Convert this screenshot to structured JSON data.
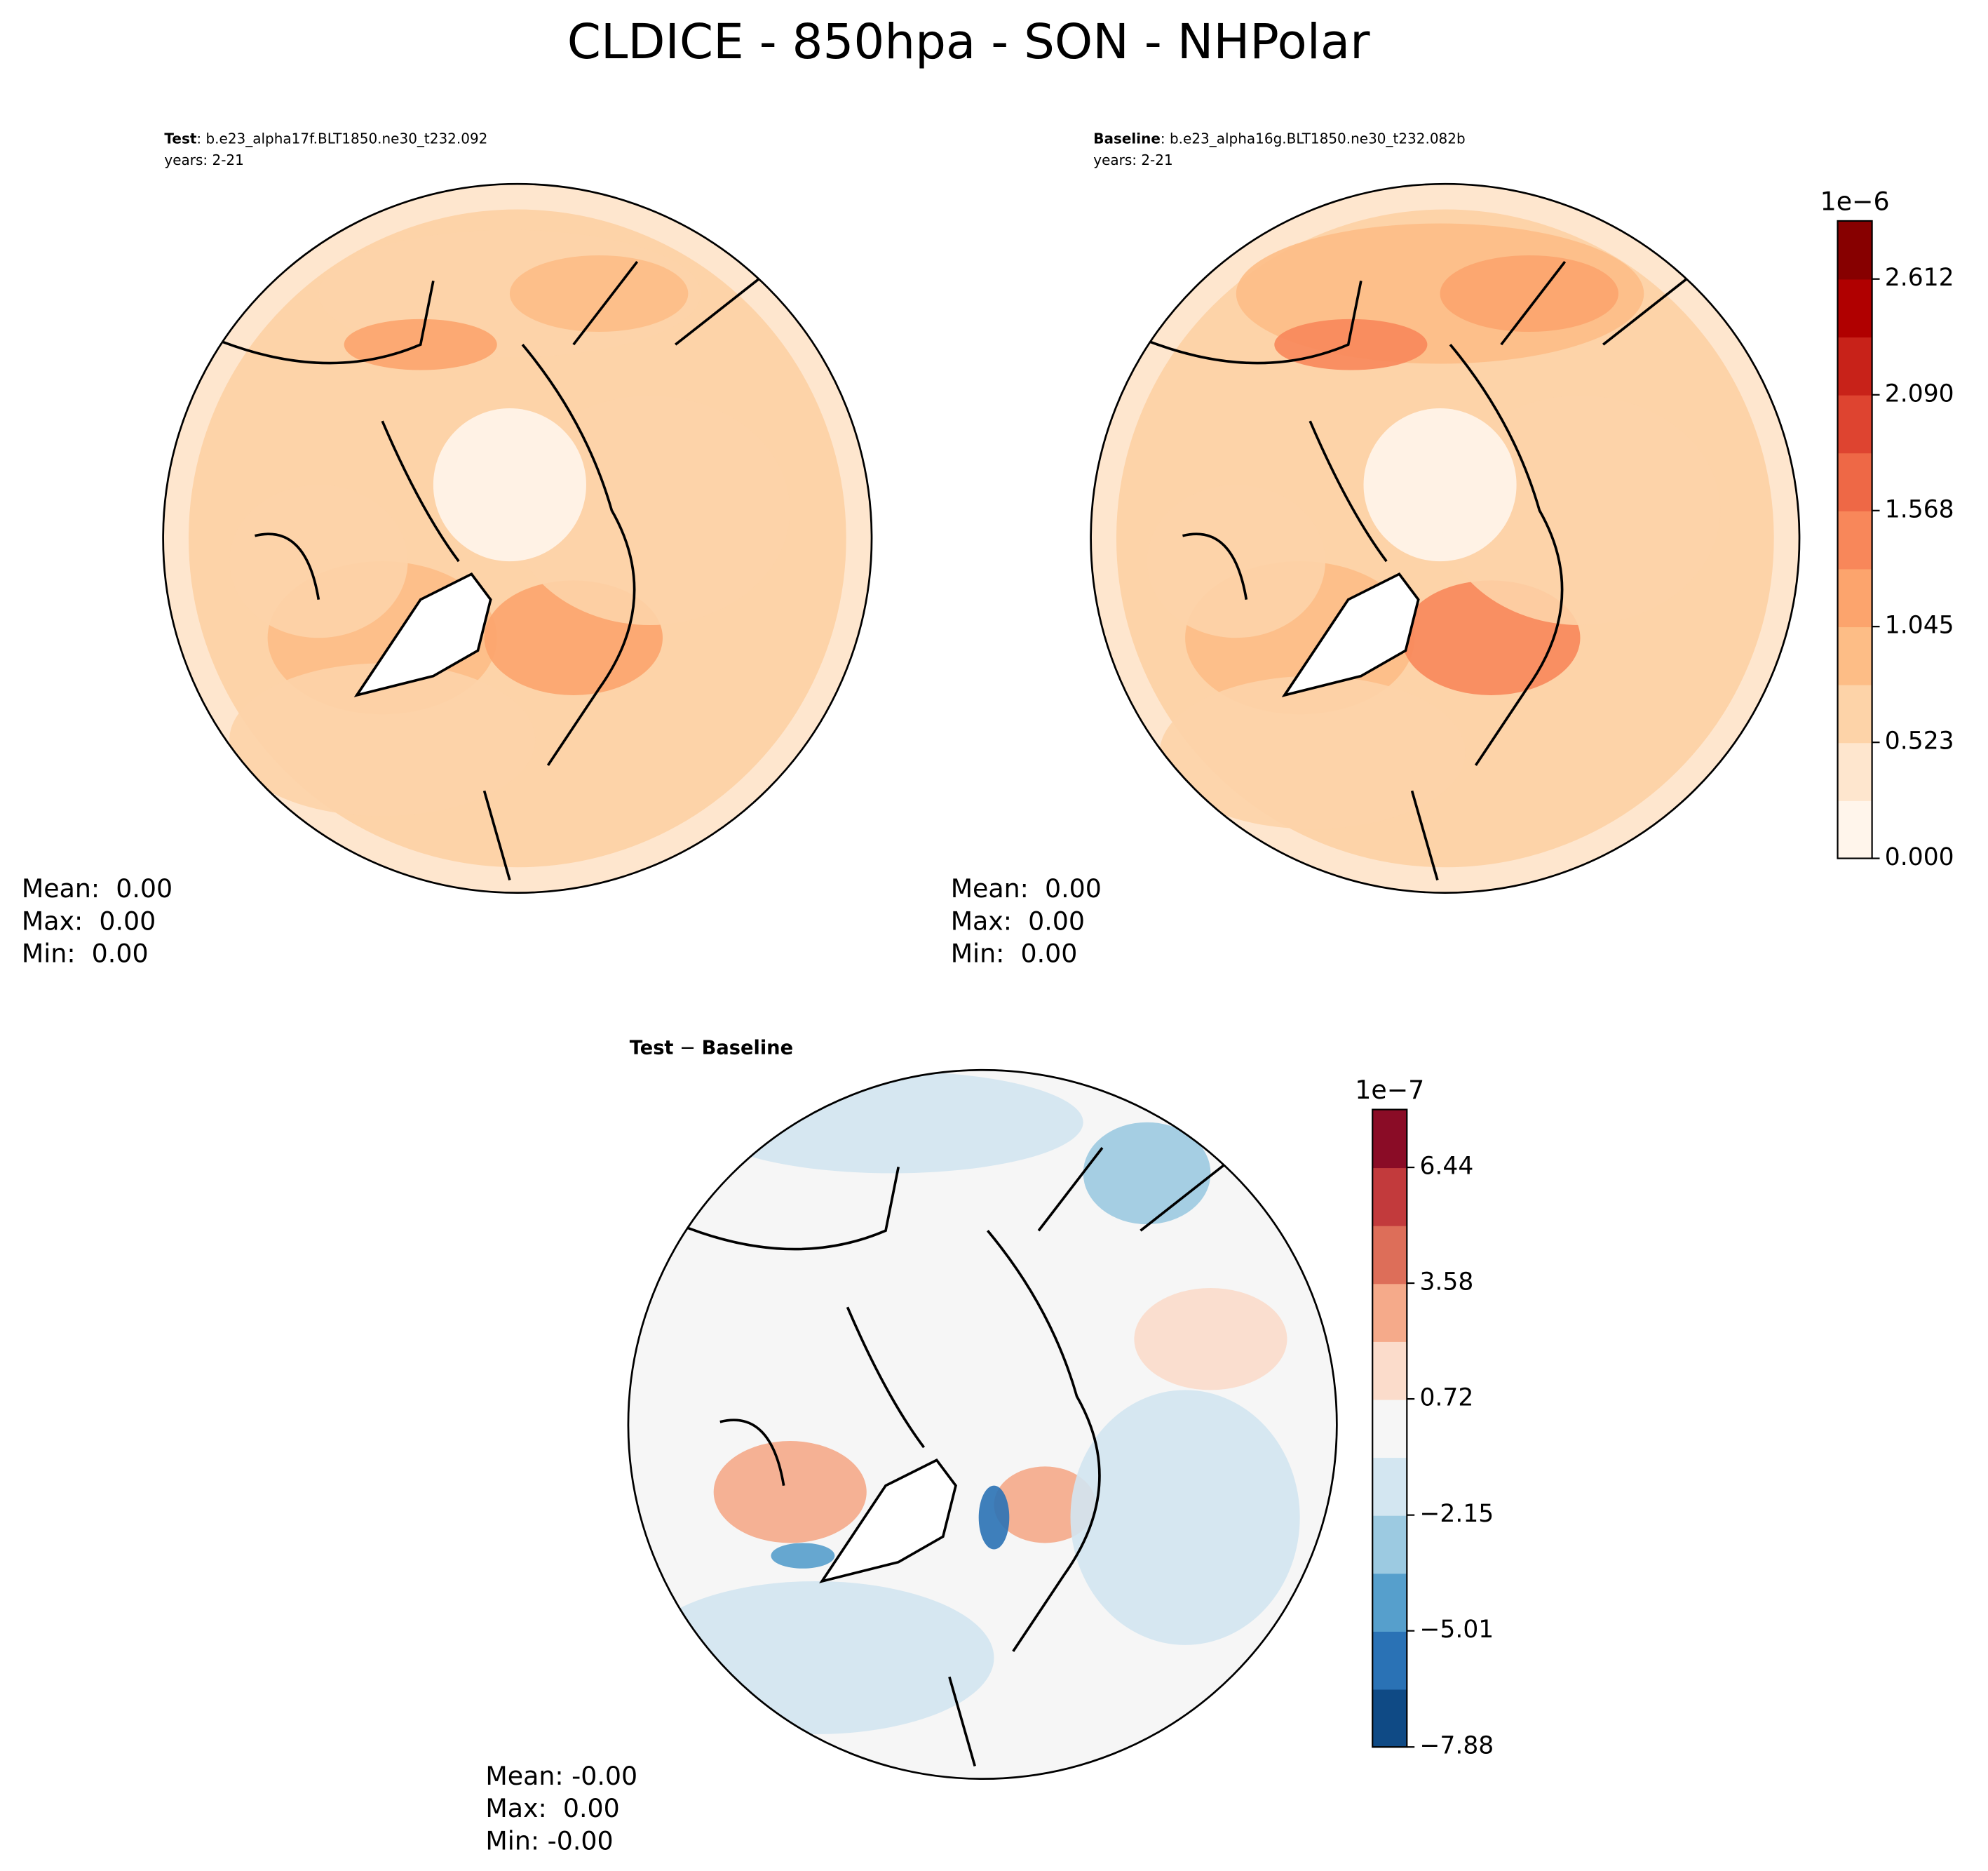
{
  "title": "CLDICE - 850hpa - SON - NHPolar",
  "panels": [
    {
      "label": "Test",
      "case": ": b.e23_alpha17f.BLT1850.ne30_t232.092",
      "years": "years: 2-21",
      "stats": [
        "Mean:  0.00",
        "Max:  0.00",
        "Min:  0.00"
      ]
    },
    {
      "label": "Baseline",
      "case": ": b.e23_alpha16g.BLT1850.ne30_t232.082b",
      "years": "years: 2-21",
      "stats": [
        "Mean:  0.00",
        "Max:  0.00",
        "Min:  0.00"
      ]
    },
    {
      "label": "Test",
      "op": " − ",
      "label2": "Baseline",
      "stats": [
        "Mean: -0.00",
        "Max:  0.00",
        "Min: -0.00"
      ]
    }
  ],
  "colorbars": [
    {
      "exponent": "1e−6",
      "lim": [
        0,
        2.874
      ],
      "ticks": [
        {
          "value": 0,
          "label": "0.000"
        },
        0.523,
        1.045,
        1.568,
        {
          "value": 2.09,
          "label": "2.090"
        },
        2.612
      ],
      "colors": [
        "#fff5eb",
        "#fee6ce",
        "#fdd3a8",
        "#fdbd86",
        "#fca46d",
        "#f8875a",
        "#ee6846",
        "#de4430",
        "#c82219",
        "#b00000",
        "#870000"
      ]
    },
    {
      "exponent": "1e−7",
      "lim": [
        -7.88,
        7.87
      ],
      "ticks": [
        {
          "value": -7.88,
          "label": "−7.88"
        },
        {
          "value": -5.01,
          "label": "−5.01"
        },
        {
          "value": -2.15,
          "label": "−2.15"
        },
        0.72,
        3.58,
        6.44
      ],
      "colors": [
        "#0f4a85",
        "#2a72b5",
        "#569fcc",
        "#9ccae1",
        "#d3e6f1",
        "#f6f6f6",
        "#fbdccb",
        "#f5aa8a",
        "#dd6e59",
        "#c23a3c",
        "#8a0c26"
      ]
    }
  ]
}
